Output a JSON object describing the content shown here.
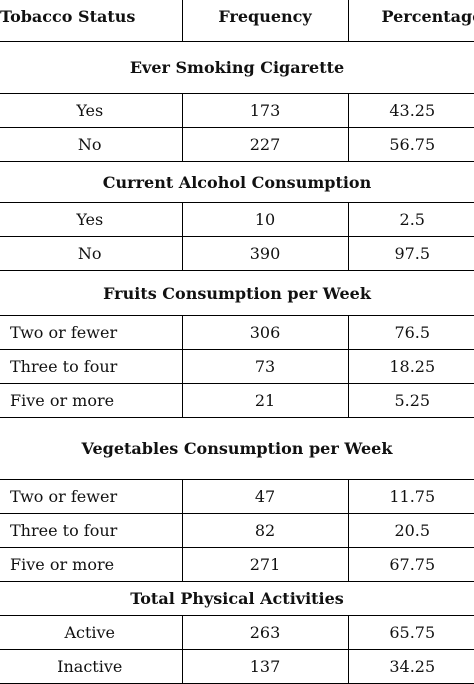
{
  "headers": {
    "status": "Tobacco Status",
    "frequency": "Frequency",
    "percentage": "Percentage"
  },
  "sections": [
    {
      "title": "Ever Smoking Cigarette",
      "align": "center",
      "rows": [
        {
          "label": "Yes",
          "frequency": "173",
          "percentage": "43.25"
        },
        {
          "label": "No",
          "frequency": "227",
          "percentage": "56.75"
        }
      ]
    },
    {
      "title": "Current Alcohol Consumption",
      "align": "center",
      "rows": [
        {
          "label": "Yes",
          "frequency": "10",
          "percentage": "2.5"
        },
        {
          "label": "No",
          "frequency": "390",
          "percentage": "97.5"
        }
      ]
    },
    {
      "title": "Fruits Consumption per Week",
      "align": "left",
      "rows": [
        {
          "label": "Two or fewer",
          "frequency": "306",
          "percentage": "76.5"
        },
        {
          "label": "Three to four",
          "frequency": "73",
          "percentage": "18.25"
        },
        {
          "label": "Five or more",
          "frequency": "21",
          "percentage": "5.25"
        }
      ]
    },
    {
      "title": "Vegetables Consumption per Week",
      "align": "left",
      "rows": [
        {
          "label": "Two or fewer",
          "frequency": "47",
          "percentage": "11.75"
        },
        {
          "label": "Three to four",
          "frequency": "82",
          "percentage": "20.5"
        },
        {
          "label": "Five or more",
          "frequency": "271",
          "percentage": "67.75"
        }
      ]
    },
    {
      "title": "Total Physical Activities",
      "align": "center",
      "rows": [
        {
          "label": "Active",
          "frequency": "263",
          "percentage": "65.75"
        },
        {
          "label": "Inactive",
          "frequency": "137",
          "percentage": "34.25"
        }
      ]
    }
  ]
}
